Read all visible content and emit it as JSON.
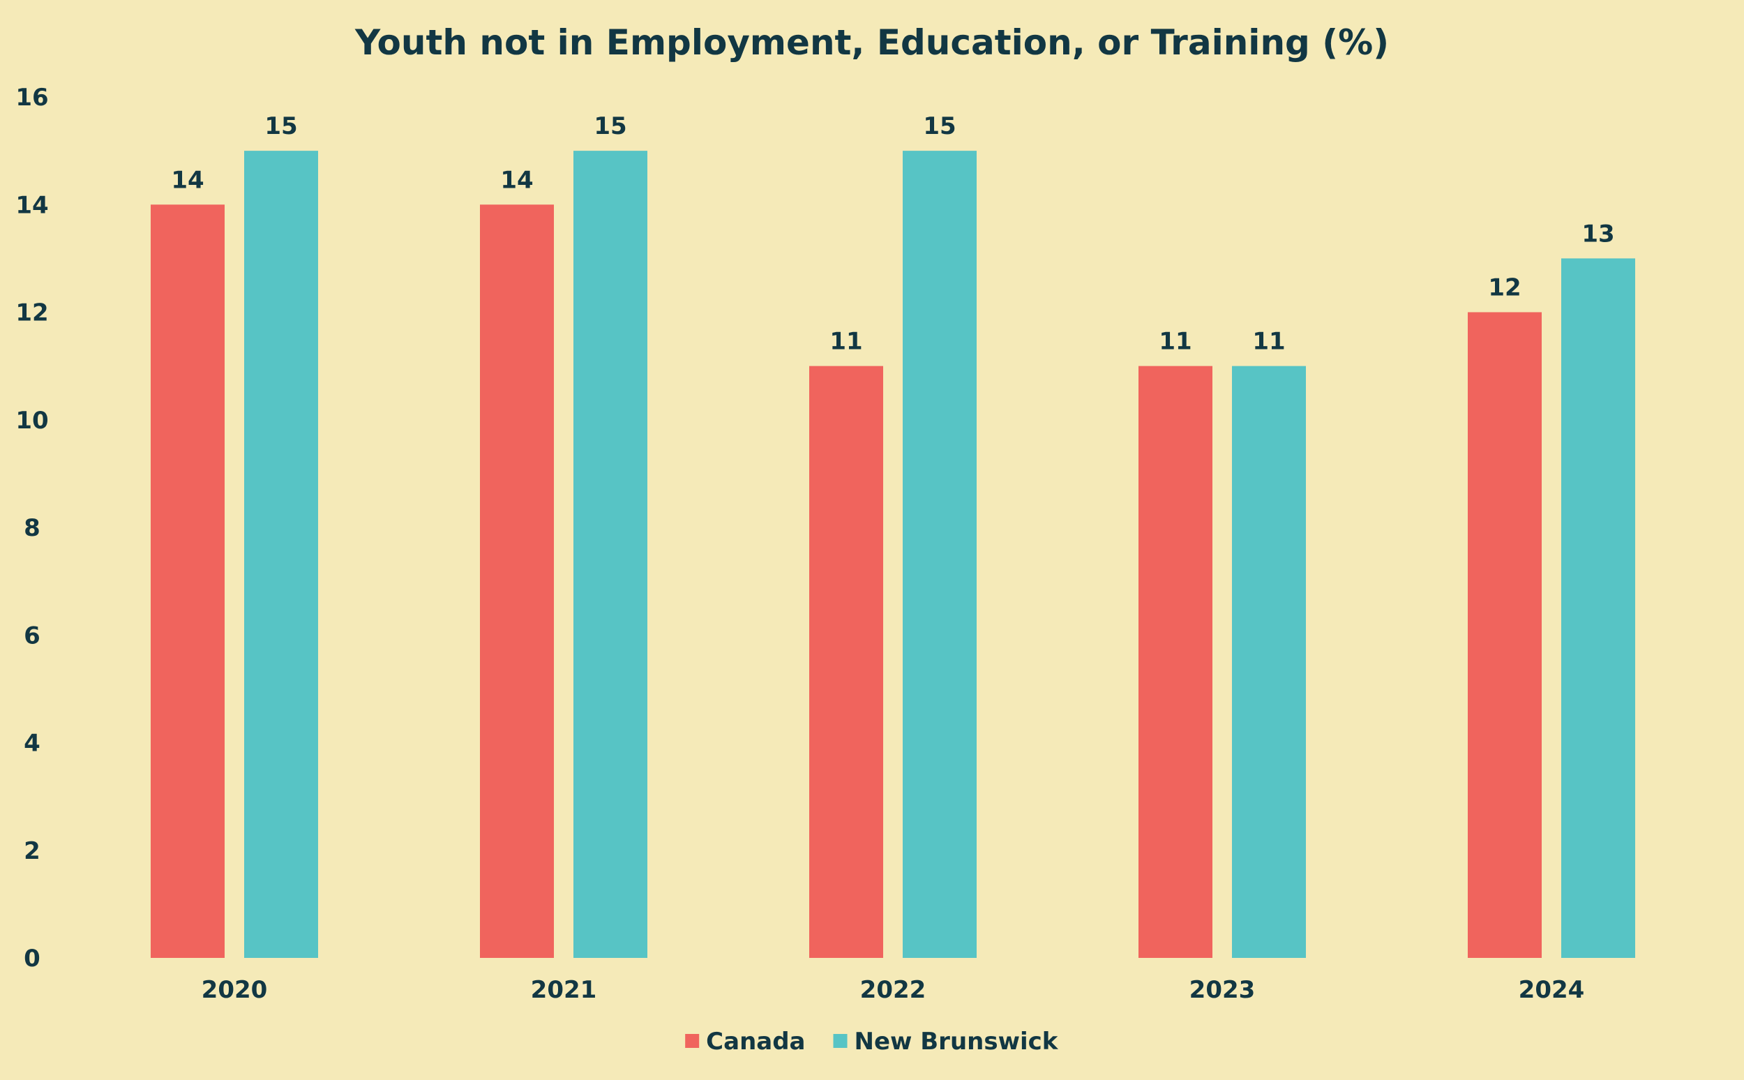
{
  "chart_data": {
    "type": "bar",
    "title": "Youth not in Employment, Education, or Training (%)",
    "xlabel": "",
    "ylabel": "",
    "categories": [
      "2020",
      "2021",
      "2022",
      "2023",
      "2024"
    ],
    "series": [
      {
        "name": "Canada",
        "values": [
          14,
          14,
          11,
          11,
          12
        ],
        "color": "#f0645d"
      },
      {
        "name": "New Brunswick",
        "values": [
          15,
          15,
          15,
          11,
          13
        ],
        "color": "#57c4c5"
      }
    ],
    "ylim": [
      0,
      16
    ],
    "yticks": [
      0,
      2,
      4,
      6,
      8,
      10,
      12,
      14,
      16
    ],
    "grid": false,
    "legend_position": "bottom-center",
    "data_labels": true
  },
  "colors": {
    "background": "#f5eab8",
    "text": "#123743"
  }
}
